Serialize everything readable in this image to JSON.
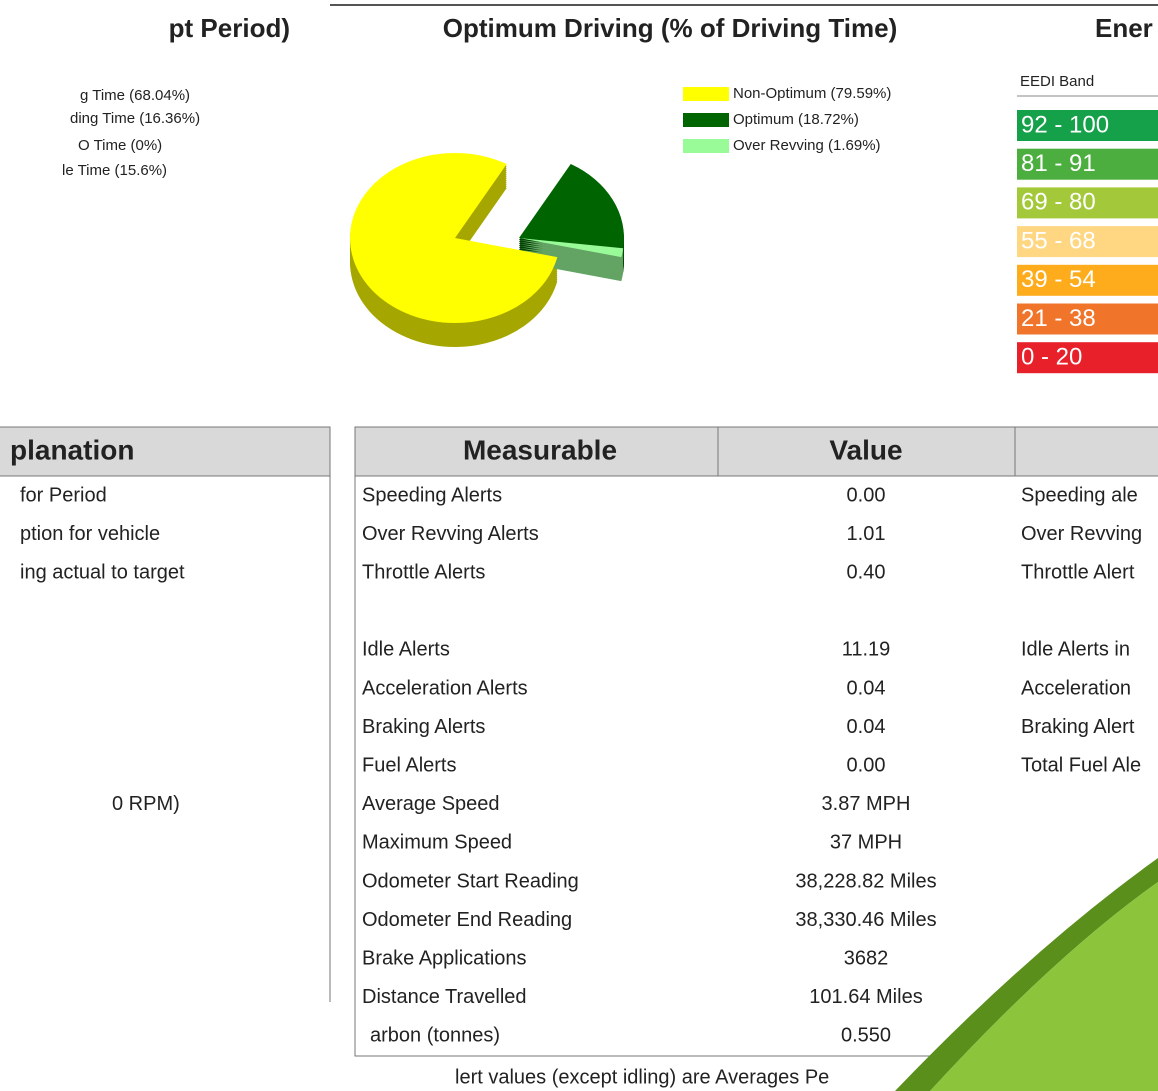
{
  "left_chart": {
    "title": "pt Period)",
    "legend": [
      "g Time (68.04%)",
      "ding Time (16.36%)",
      "O Time (0%)",
      "le Time (15.6%)"
    ]
  },
  "chart_data": {
    "type": "pie",
    "title": "Optimum Driving (% of Driving Time)",
    "categories": [
      "Non-Optimum (79.59%)",
      "Optimum (18.72%)",
      "Over Revving (1.69%)"
    ],
    "values": [
      79.59,
      18.72,
      1.69
    ],
    "colors": [
      "#ffff00",
      "#006400",
      "#98fb98"
    ]
  },
  "eedi": {
    "title": "Ener",
    "header": "EEDI Band",
    "bands": [
      {
        "label": "92 - 100",
        "color": "#15a04a"
      },
      {
        "label": "81 - 91",
        "color": "#4cae3f"
      },
      {
        "label": "69 - 80",
        "color": "#a3c93a"
      },
      {
        "label": "55 - 68",
        "color": "#ffd783"
      },
      {
        "label": "39 - 54",
        "color": "#ffac1c"
      },
      {
        "label": "21 - 38",
        "color": "#f0742a"
      },
      {
        "label": "0 - 20",
        "color": "#e8202a"
      }
    ]
  },
  "explanation_table": {
    "header": "planation",
    "rows": [
      "for Period",
      "ption for vehicle",
      "ing actual to target",
      null,
      null,
      null,
      null,
      null,
      "0 RPM)"
    ]
  },
  "measures_table": {
    "headers": [
      "Measurable",
      "Value"
    ],
    "rows": [
      [
        "Speeding Alerts",
        "0.00",
        "Speeding ale"
      ],
      [
        "Over Revving Alerts",
        "1.01",
        "Over Revving"
      ],
      [
        "Throttle Alerts",
        "0.40",
        "Throttle Alert"
      ],
      [
        null,
        null,
        null
      ],
      [
        "Idle Alerts",
        "11.19",
        "Idle Alerts in"
      ],
      [
        "Acceleration Alerts",
        "0.04",
        "Acceleration"
      ],
      [
        "Braking Alerts",
        "0.04",
        "Braking Alert"
      ],
      [
        "Fuel Alerts",
        "0.00",
        "Total Fuel Ale"
      ],
      [
        "Average Speed",
        "3.87 MPH",
        null
      ],
      [
        "Maximum Speed",
        "37 MPH",
        null
      ],
      [
        "Odometer Start Reading",
        "38,228.82 Miles",
        null
      ],
      [
        "Odometer End Reading",
        "38,330.46 Miles",
        null
      ],
      [
        "Brake Applications",
        "3682",
        null
      ],
      [
        "Distance Travelled",
        "101.64 Miles",
        null
      ],
      [
        "arbon (tonnes)",
        "0.550",
        null
      ]
    ]
  },
  "footnote": "lert values (except idling) are Averages Pe"
}
